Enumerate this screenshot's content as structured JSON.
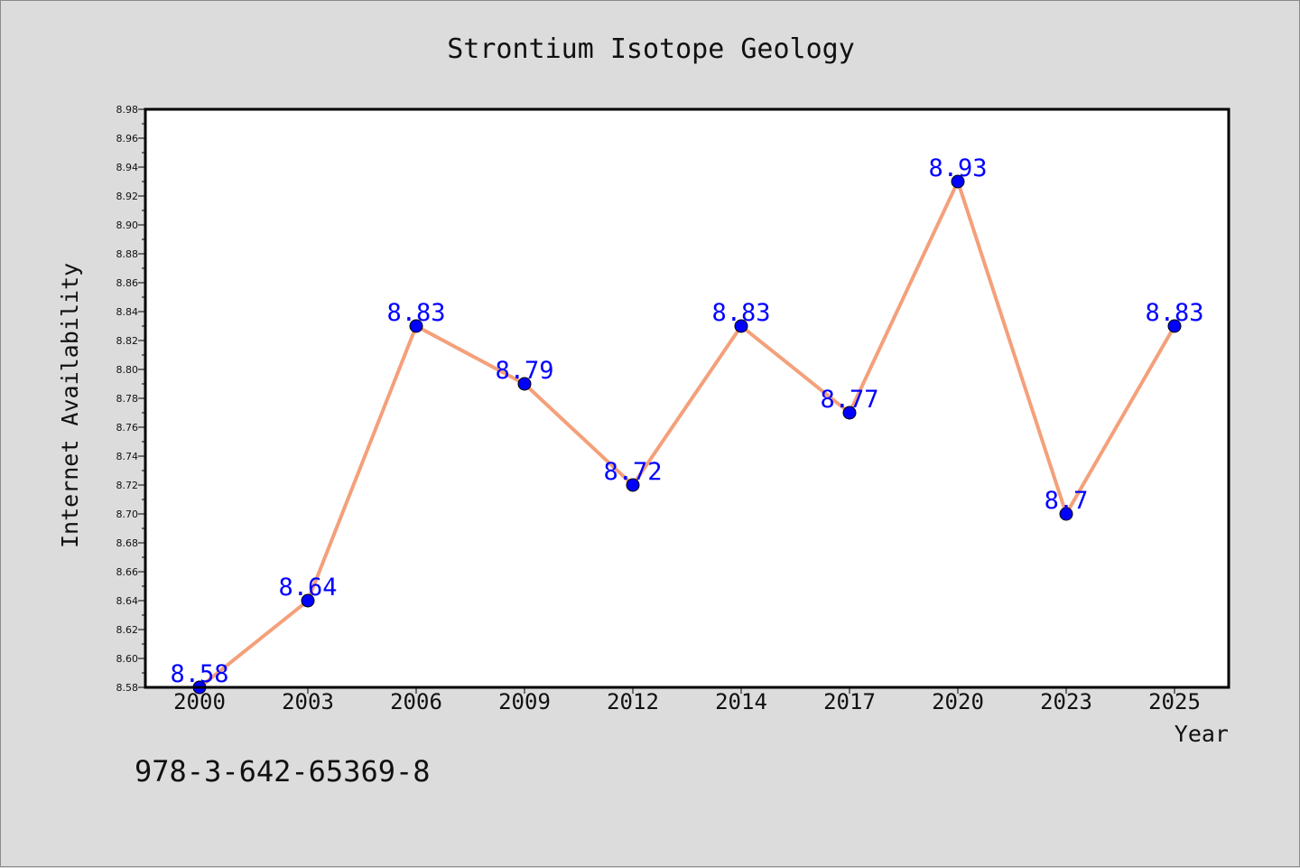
{
  "chart_data": {
    "type": "line",
    "title": "Strontium Isotope Geology",
    "xlabel": "Year",
    "ylabel": "Internet Availability",
    "categories": [
      "2000",
      "2003",
      "2006",
      "2009",
      "2012",
      "2014",
      "2017",
      "2020",
      "2023",
      "2025"
    ],
    "series": [
      {
        "values": [
          8.58,
          8.64,
          8.83,
          8.79,
          8.72,
          8.83,
          8.77,
          8.93,
          8.7,
          8.83
        ],
        "labels": [
          "8.58",
          "8.64",
          "8.83",
          "8.79",
          "8.72",
          "8.83",
          "8.77",
          "8.93",
          "8.7",
          "8.83"
        ],
        "line_color": "#f4a07a",
        "marker_color": "#0000ff"
      }
    ],
    "ylim": [
      8.58,
      8.98
    ],
    "yticks": [
      "8.58",
      "8.60",
      "8.62",
      "8.64",
      "8.66",
      "8.68",
      "8.70",
      "8.72",
      "8.74",
      "8.76",
      "8.78",
      "8.80",
      "8.82",
      "8.84",
      "8.86",
      "8.88",
      "8.90",
      "8.92",
      "8.94",
      "8.96",
      "8.98"
    ],
    "grid": false,
    "legend": "none",
    "plot_background": "#ffffff",
    "figure_background": "#dcdcdc"
  },
  "footer": {
    "isbn": "978-3-642-65369-8"
  }
}
